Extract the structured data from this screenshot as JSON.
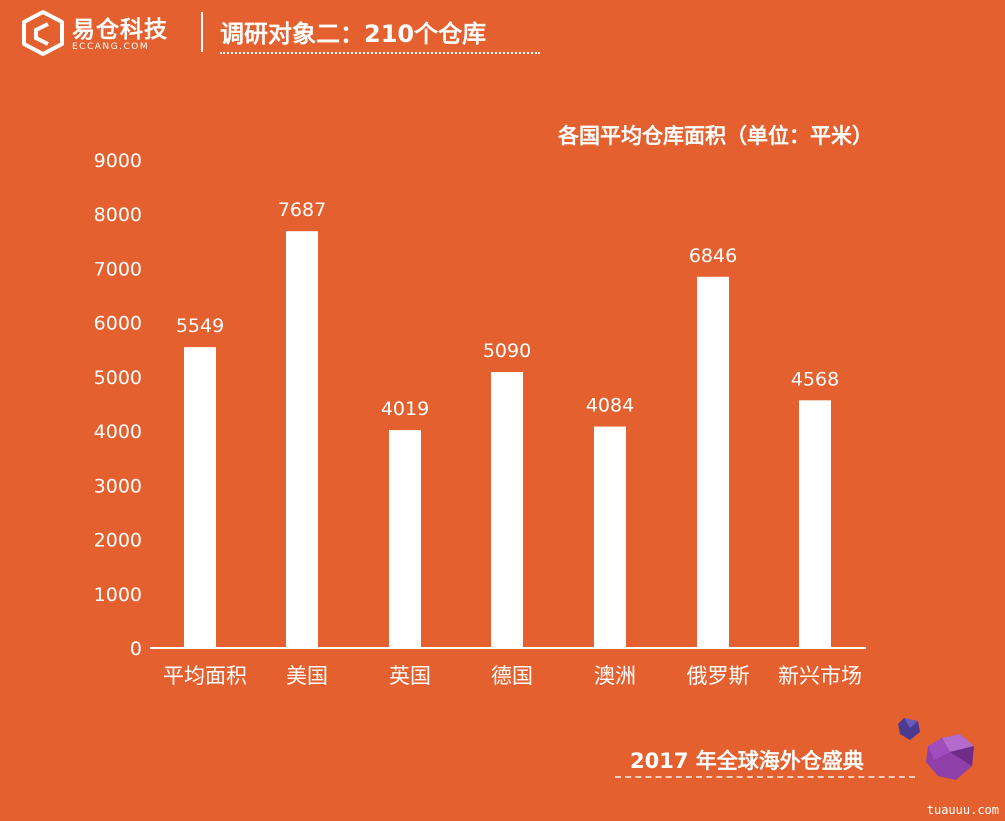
{
  "header": {
    "brand_name": "易仓科技",
    "brand_domain": "ECCANG.COM",
    "title": "调研对象二：210个仓库"
  },
  "chart_data": {
    "type": "bar",
    "title": "各国平均仓库面积（单位：平米）",
    "categories": [
      "平均面积",
      "美国",
      "英国",
      "德国",
      "澳洲",
      "俄罗斯",
      "新兴市场"
    ],
    "values": [
      5549,
      7687,
      4019,
      5090,
      4084,
      6846,
      4568
    ],
    "y_ticks": [
      0,
      1000,
      2000,
      3000,
      4000,
      5000,
      6000,
      7000,
      8000,
      9000
    ],
    "ylim": [
      0,
      9000
    ],
    "grid": false,
    "bar_color": "#FFFFFF",
    "background_color": "#E4602F"
  },
  "footer": {
    "event_text": "2017 年全球海外仓盛典",
    "watermark": "tuauuu.com"
  }
}
